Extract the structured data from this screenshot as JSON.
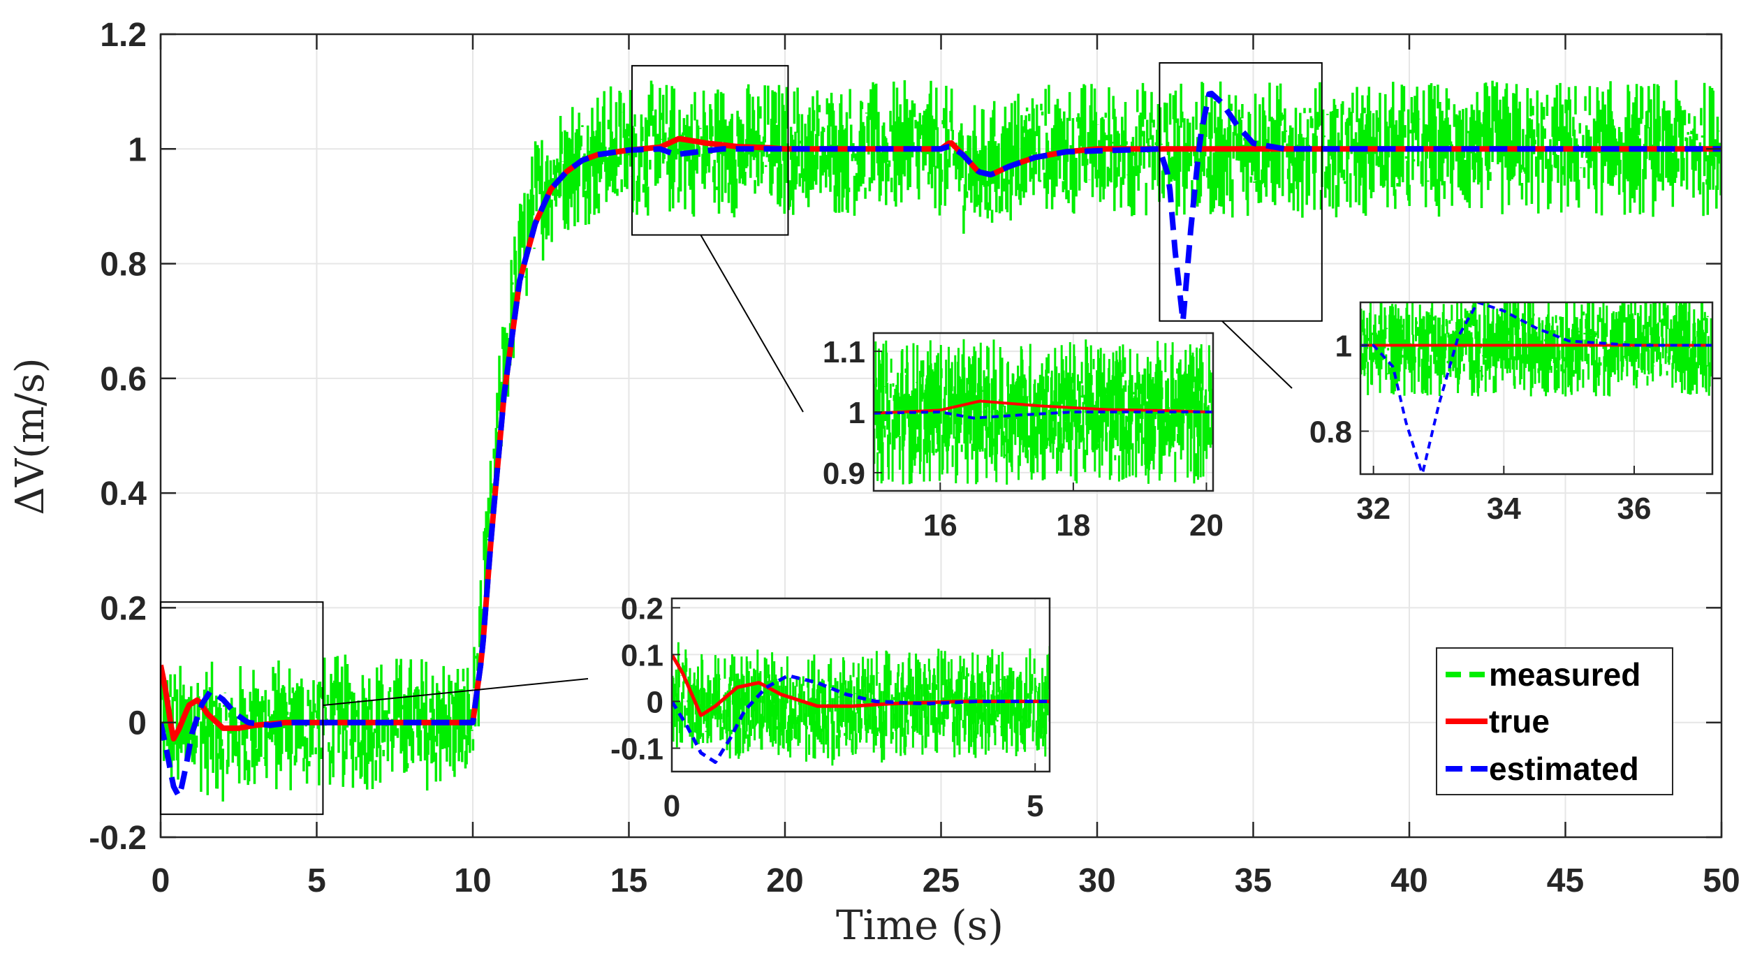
{
  "chart_data": {
    "type": "line",
    "xlabel": "Time (s)",
    "ylabel": "ΔV(m/s)",
    "xlim": [
      0,
      50
    ],
    "ylim": [
      -0.2,
      1.2
    ],
    "xticks": [
      "0",
      "5",
      "10",
      "15",
      "20",
      "25",
      "30",
      "35",
      "40",
      "45",
      "50"
    ],
    "yticks": [
      "-0.2",
      "0",
      "0.2",
      "0.4",
      "0.6",
      "0.8",
      "1",
      "1.2"
    ],
    "grid": true,
    "legend": {
      "position": "bottom-right",
      "entries": [
        "measured",
        "true",
        "estimated"
      ]
    },
    "colors": {
      "measured": "#00ee00",
      "true": "#ff0000",
      "estimated": "#0000ff"
    },
    "series": [
      {
        "name": "measured",
        "style": "noisy-dashed",
        "noise_amplitude": 0.12,
        "x": [
          0,
          0.5,
          1,
          2,
          3,
          5,
          10,
          10.5,
          11,
          11.5,
          12,
          12.5,
          13,
          14,
          15,
          16,
          17,
          18,
          20,
          25,
          26,
          26.5,
          27,
          28,
          30,
          33,
          35,
          40,
          45,
          50
        ],
        "values": [
          0.02,
          -0.02,
          0.0,
          -0.02,
          -0.01,
          0.0,
          0.0,
          0.3,
          0.62,
          0.8,
          0.9,
          0.95,
          0.975,
          0.99,
          1.0,
          1.0,
          1.0,
          1.0,
          1.0,
          1.0,
          0.96,
          0.96,
          0.98,
          1.0,
          1.0,
          1.0,
          1.0,
          1.0,
          1.0,
          1.0
        ]
      },
      {
        "name": "true",
        "style": "solid",
        "x": [
          0,
          0.15,
          0.4,
          0.6,
          0.9,
          1.2,
          1.5,
          2.0,
          2.5,
          3,
          4,
          5,
          10,
          10.3,
          10.6,
          11,
          11.5,
          12,
          12.5,
          13,
          13.5,
          14,
          15,
          16,
          16.6,
          17.5,
          18.5,
          19.5,
          20,
          24,
          25,
          25.3,
          25.7,
          26.2,
          26.6,
          27.2,
          28,
          29,
          30,
          35,
          40,
          45,
          50
        ],
        "values": [
          0.1,
          0.06,
          -0.03,
          -0.01,
          0.03,
          0.04,
          0.015,
          -0.01,
          -0.01,
          -0.005,
          0.0,
          0.0,
          0.0,
          0.12,
          0.33,
          0.57,
          0.77,
          0.87,
          0.93,
          0.96,
          0.98,
          0.99,
          0.998,
          1.003,
          1.018,
          1.01,
          1.004,
          1.002,
          1.0,
          1.0,
          1.0,
          1.012,
          0.99,
          0.96,
          0.955,
          0.97,
          0.985,
          0.995,
          1.0,
          1.0,
          1.0,
          1.0,
          1.0
        ]
      },
      {
        "name": "estimated",
        "style": "dashed",
        "x": [
          0,
          0.2,
          0.4,
          0.6,
          0.8,
          1.0,
          1.3,
          1.6,
          2.0,
          2.4,
          2.8,
          3.5,
          4.2,
          5,
          10,
          10.3,
          10.6,
          11,
          11.5,
          12,
          12.5,
          13,
          13.5,
          14,
          15,
          16,
          16.5,
          17.2,
          18,
          19,
          20,
          24,
          25,
          25.3,
          25.7,
          26.2,
          26.6,
          27.2,
          28,
          29,
          32,
          32.3,
          32.5,
          32.75,
          33.0,
          33.3,
          33.6,
          34.0,
          34.5,
          35.0,
          36,
          37,
          40,
          45,
          50
        ],
        "values": [
          0.0,
          -0.05,
          -0.11,
          -0.13,
          -0.08,
          -0.02,
          0.03,
          0.055,
          0.04,
          0.015,
          0.0,
          -0.005,
          0.0,
          0.0,
          0.0,
          0.12,
          0.33,
          0.57,
          0.77,
          0.87,
          0.93,
          0.96,
          0.98,
          0.99,
          0.998,
          1.0,
          0.99,
          0.995,
          1.0,
          1.0,
          1.0,
          1.0,
          1.0,
          1.005,
          0.99,
          0.96,
          0.955,
          0.97,
          0.985,
          0.995,
          1.0,
          0.95,
          0.82,
          0.7,
          0.86,
          1.02,
          1.1,
          1.08,
          1.04,
          1.01,
          1.0,
          1.0,
          1.0,
          1.0,
          1.0
        ]
      }
    ],
    "zoom_regions": [
      {
        "name": "zoom-start",
        "xrange": [
          0,
          5.2
        ],
        "yrange": [
          -0.16,
          0.21
        ]
      },
      {
        "name": "zoom-mid",
        "xrange": [
          15.1,
          20.1
        ],
        "yrange": [
          0.85,
          1.145
        ]
      },
      {
        "name": "zoom-late",
        "xrange": [
          32.0,
          37.2
        ],
        "yrange": [
          0.7,
          1.15
        ]
      }
    ],
    "insets": [
      {
        "name": "inset-start",
        "xlim": [
          0,
          5.2
        ],
        "ylim": [
          -0.15,
          0.22
        ],
        "xticks": [
          "0",
          "5"
        ],
        "yticks": [
          "0.2",
          "0.1",
          "0",
          "-0.1"
        ]
      },
      {
        "name": "inset-mid",
        "xlim": [
          15.0,
          20.1
        ],
        "ylim": [
          0.87,
          1.13
        ],
        "xticks": [
          "16",
          "18",
          "20"
        ],
        "yticks": [
          "1.1",
          "1",
          "0.9"
        ]
      },
      {
        "name": "inset-late",
        "xlim": [
          31.8,
          37.2
        ],
        "ylim": [
          0.7,
          1.1
        ],
        "xticks": [
          "32",
          "34",
          "36"
        ],
        "yticks": [
          "1",
          "0.8"
        ]
      }
    ]
  }
}
